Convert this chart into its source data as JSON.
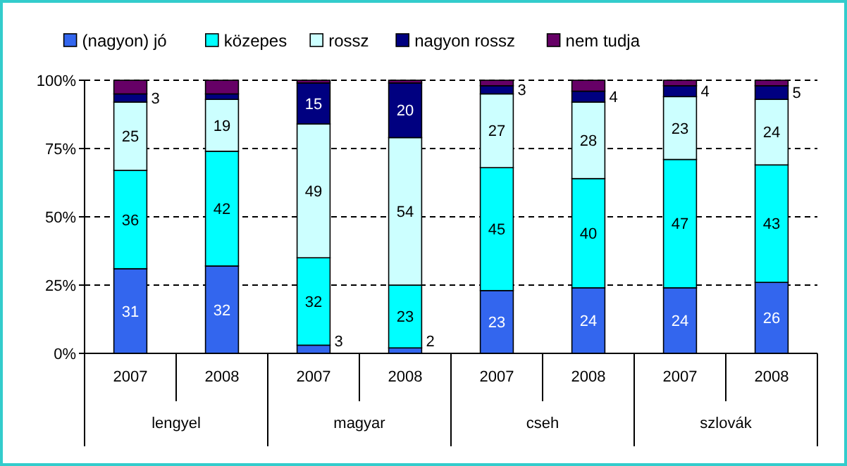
{
  "chart_data": {
    "type": "bar",
    "stacked": true,
    "categories": [
      "2007",
      "2008",
      "2007",
      "2008",
      "2007",
      "2008",
      "2007",
      "2008"
    ],
    "annotations": [
      "lengyel",
      "magyar",
      "cseh",
      "szlovák"
    ],
    "series": [
      {
        "name": "(nagyon) jó",
        "color": "#3366ee",
        "values": [
          31,
          32,
          3,
          2,
          23,
          24,
          24,
          26
        ],
        "value_labels": [
          "31",
          "32",
          "3",
          "2",
          "23",
          "24",
          "24",
          "26"
        ]
      },
      {
        "name": "közepes",
        "color": "#00ffff",
        "values": [
          36,
          42,
          32,
          23,
          45,
          40,
          47,
          43
        ],
        "value_labels": [
          "36",
          "42",
          "32",
          "23",
          "45",
          "40",
          "47",
          "43"
        ]
      },
      {
        "name": "rossz",
        "color": "#ccffff",
        "values": [
          25,
          19,
          49,
          54,
          27,
          28,
          23,
          24
        ],
        "value_labels": [
          "25",
          "19",
          "49",
          "54",
          "27",
          "28",
          "23",
          "24"
        ]
      },
      {
        "name": "nagyon rossz",
        "color": "#000080",
        "values": [
          3,
          2,
          15,
          20,
          3,
          4,
          4,
          5
        ],
        "value_labels": [
          "3",
          null,
          "15",
          "20",
          "3",
          "4",
          "4",
          "5"
        ]
      },
      {
        "name": "nem tudja",
        "color": "#660066",
        "values": [
          5,
          5,
          1,
          1,
          2,
          4,
          2,
          2
        ],
        "value_labels": [
          null,
          null,
          null,
          null,
          null,
          null,
          null,
          null
        ]
      }
    ],
    "ylim": [
      0,
      100
    ],
    "yticks": [
      {
        "value": 0,
        "label": "0%"
      },
      {
        "value": 25,
        "label": "25%"
      },
      {
        "value": 50,
        "label": "50%"
      },
      {
        "value": 75,
        "label": "75%"
      },
      {
        "value": 100,
        "label": "100%"
      }
    ],
    "grid": "y",
    "legend": "top"
  }
}
